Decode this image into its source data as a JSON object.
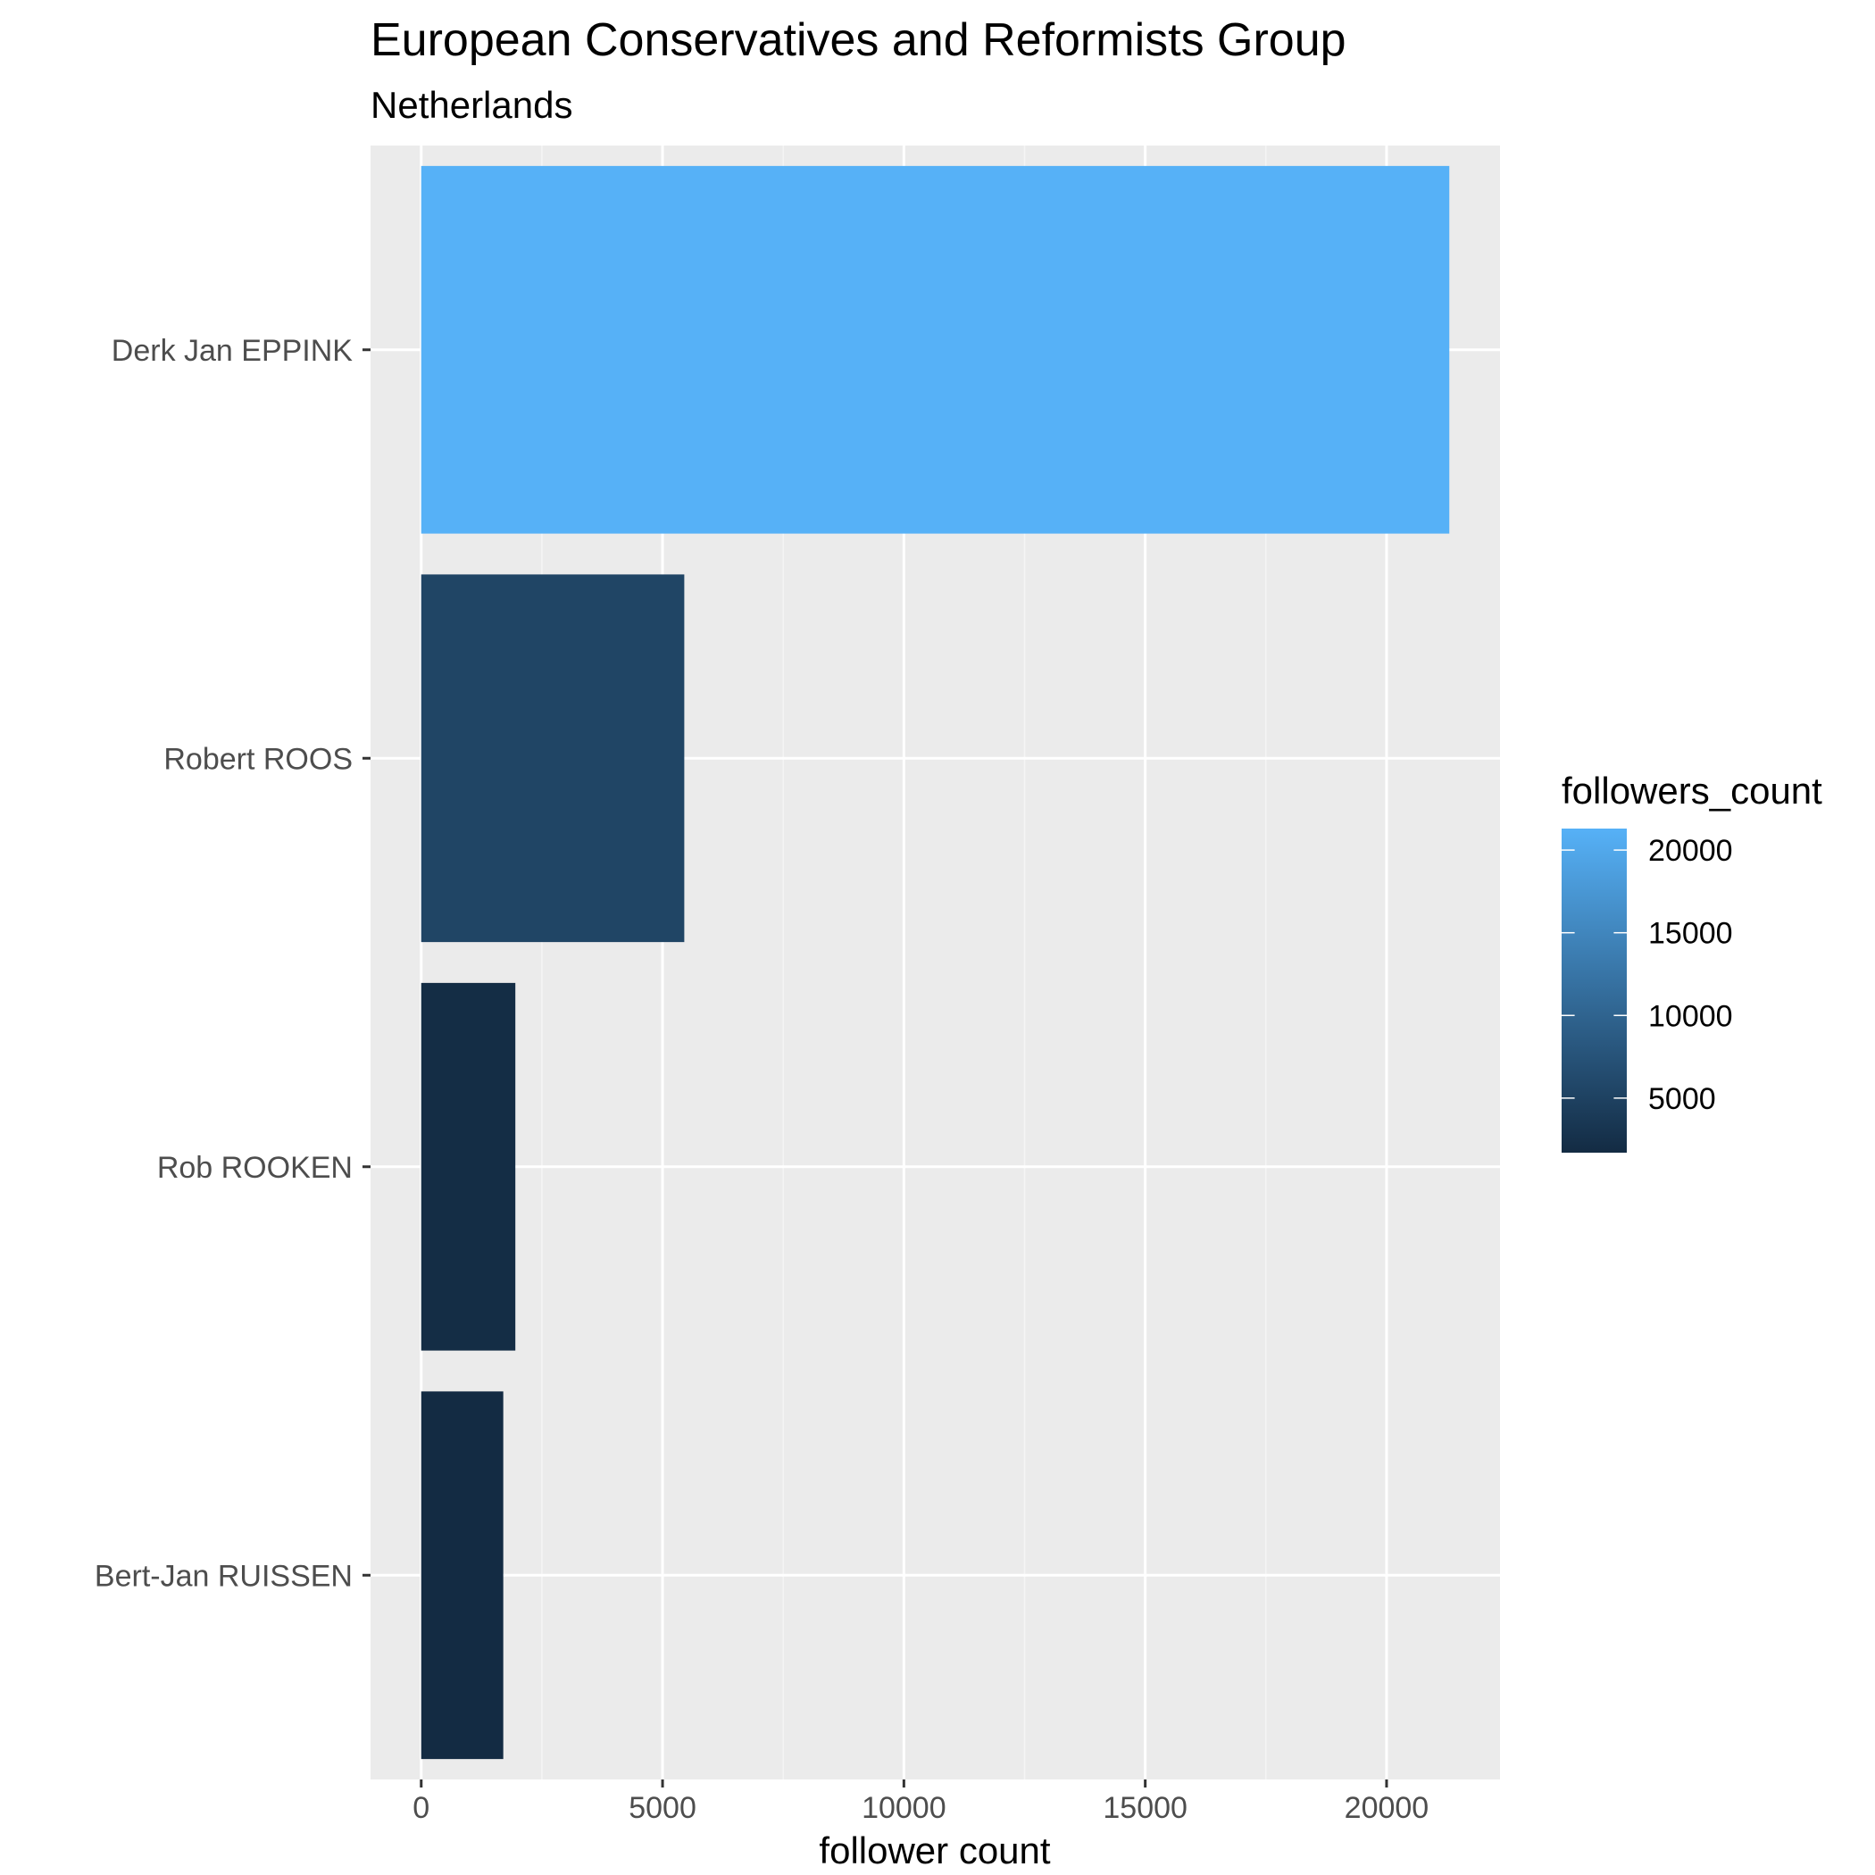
{
  "chart_data": {
    "type": "bar",
    "orientation": "horizontal",
    "title": "European Conservatives and Reformists Group",
    "subtitle": "Netherlands",
    "xlabel": "follower count",
    "ylabel": "",
    "categories": [
      "Derk Jan EPPINK",
      "Robert ROOS",
      "Rob ROOKEN",
      "Bert-Jan RUISSEN"
    ],
    "values": [
      21300,
      5450,
      1950,
      1700
    ],
    "xlim": [
      -1050,
      22350
    ],
    "xticks": [
      0,
      5000,
      10000,
      15000,
      20000
    ],
    "xtick_labels": [
      "0",
      "5000",
      "10000",
      "15000",
      "20000"
    ],
    "grid": true,
    "legend": {
      "title": "followers_count",
      "position": "right",
      "ticks": [
        5000,
        10000,
        15000,
        20000
      ],
      "tick_labels": [
        "5000",
        "10000",
        "15000",
        "20000"
      ],
      "range": [
        1700,
        21300
      ],
      "low_color": "#132B43",
      "high_color": "#56B1F7"
    },
    "colors": {
      "panel_background": "#EBEBEB",
      "grid_major": "#FFFFFF",
      "grid_minor": "#F5F5F5",
      "axis_tick": "#333333"
    }
  }
}
